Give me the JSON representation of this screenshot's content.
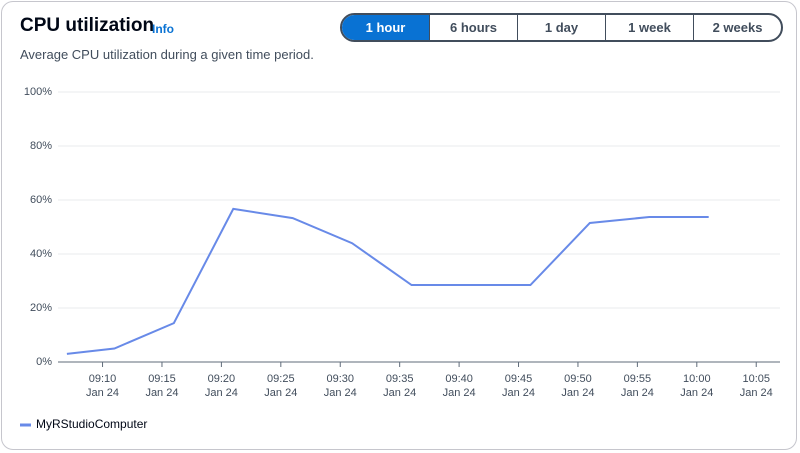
{
  "chart_data": {
    "type": "line",
    "title": "CPU utilization",
    "subtitle": "Average CPU utilization during a given time period.",
    "x": [
      "09:07",
      "09:11",
      "09:16",
      "09:21",
      "09:26",
      "09:31",
      "09:36",
      "09:41",
      "09:46",
      "09:51",
      "09:56",
      "10:01"
    ],
    "series": [
      {
        "name": "MyRStudioComputer",
        "color": "#688ae8",
        "values": [
          3,
          5,
          14.4,
          56.7,
          53.3,
          44,
          28.5,
          28.5,
          28.5,
          51.5,
          53.7,
          53.7
        ]
      }
    ],
    "xlim": [
      "09:06",
      "10:07"
    ],
    "xticks": [
      {
        "value": "09:10",
        "label": [
          "09:10",
          "Jan 24"
        ]
      },
      {
        "value": "09:15",
        "label": [
          "09:15",
          "Jan 24"
        ]
      },
      {
        "value": "09:20",
        "label": [
          "09:20",
          "Jan 24"
        ]
      },
      {
        "value": "09:25",
        "label": [
          "09:25",
          "Jan 24"
        ]
      },
      {
        "value": "09:30",
        "label": [
          "09:30",
          "Jan 24"
        ]
      },
      {
        "value": "09:35",
        "label": [
          "09:35",
          "Jan 24"
        ]
      },
      {
        "value": "09:40",
        "label": [
          "09:40",
          "Jan 24"
        ]
      },
      {
        "value": "09:45",
        "label": [
          "09:45",
          "Jan 24"
        ]
      },
      {
        "value": "09:50",
        "label": [
          "09:50",
          "Jan 24"
        ]
      },
      {
        "value": "09:55",
        "label": [
          "09:55",
          "Jan 24"
        ]
      },
      {
        "value": "10:00",
        "label": [
          "10:00",
          "Jan 24"
        ]
      },
      {
        "value": "10:05",
        "label": [
          "10:05",
          "Jan 24"
        ]
      }
    ],
    "ylim": [
      0,
      100
    ],
    "yticks": [
      {
        "value": 0,
        "label": "0%"
      },
      {
        "value": 20,
        "label": "20%"
      },
      {
        "value": 40,
        "label": "40%"
      },
      {
        "value": 60,
        "label": "60%"
      },
      {
        "value": 80,
        "label": "80%"
      },
      {
        "value": 100,
        "label": "100%"
      }
    ],
    "grid": true
  },
  "info": "Info",
  "time_ranges": [
    "1 hour",
    "6 hours",
    "1 day",
    "1 week",
    "2 weeks"
  ],
  "selected_range": 0
}
